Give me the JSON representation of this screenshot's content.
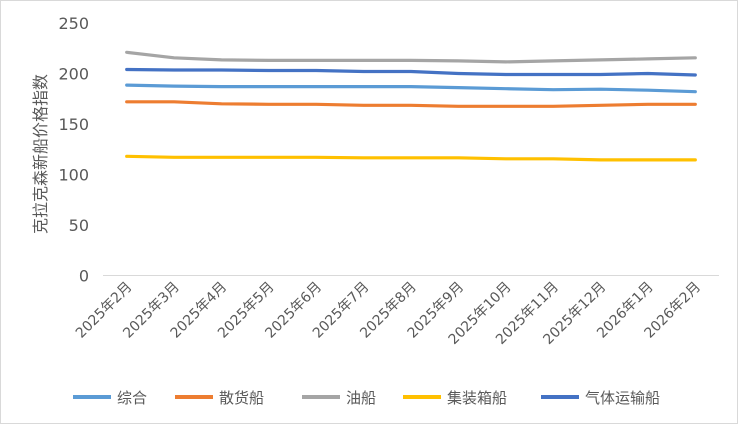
{
  "chart_data": {
    "type": "line",
    "title": "",
    "xlabel": "",
    "ylabel": "克拉克森新船价格指数",
    "ylim": [
      0,
      250
    ],
    "yticks": [
      0,
      50,
      100,
      150,
      200,
      250
    ],
    "grid": false,
    "legend_position": "bottom",
    "categories": [
      "2025年2月",
      "2025年3月",
      "2025年4月",
      "2025年5月",
      "2025年6月",
      "2025年7月",
      "2025年8月",
      "2025年9月",
      "2025年10月",
      "2025年11月",
      "2025年12月",
      "2026年1月",
      "2026年2月"
    ],
    "series": [
      {
        "name": "综合",
        "color": "#5B9BD5",
        "values": [
          188.5,
          187.5,
          187,
          187,
          187,
          187,
          187,
          186,
          185,
          184,
          184.5,
          183.5,
          182
        ]
      },
      {
        "name": "散货船",
        "color": "#ED7D31",
        "values": [
          172,
          172,
          170,
          169.5,
          169.5,
          168.5,
          168.5,
          167.5,
          167.5,
          167.5,
          168.5,
          169.5,
          169.5
        ]
      },
      {
        "name": "油船",
        "color": "#A5A5A5",
        "values": [
          221,
          215.5,
          213.5,
          213,
          213,
          213,
          213,
          212.5,
          211.5,
          212.5,
          213.5,
          214.5,
          215.5
        ]
      },
      {
        "name": "集装箱船",
        "color": "#FFC000",
        "values": [
          118,
          117,
          117,
          117,
          117,
          116.5,
          116.5,
          116.5,
          115.5,
          115.5,
          114.5,
          114.5,
          114.5
        ]
      },
      {
        "name": "气体运输船",
        "color": "#4472C4",
        "values": [
          204,
          203.5,
          203.5,
          203,
          203,
          202,
          202,
          200,
          199,
          199,
          199,
          200,
          198.5
        ]
      }
    ]
  }
}
